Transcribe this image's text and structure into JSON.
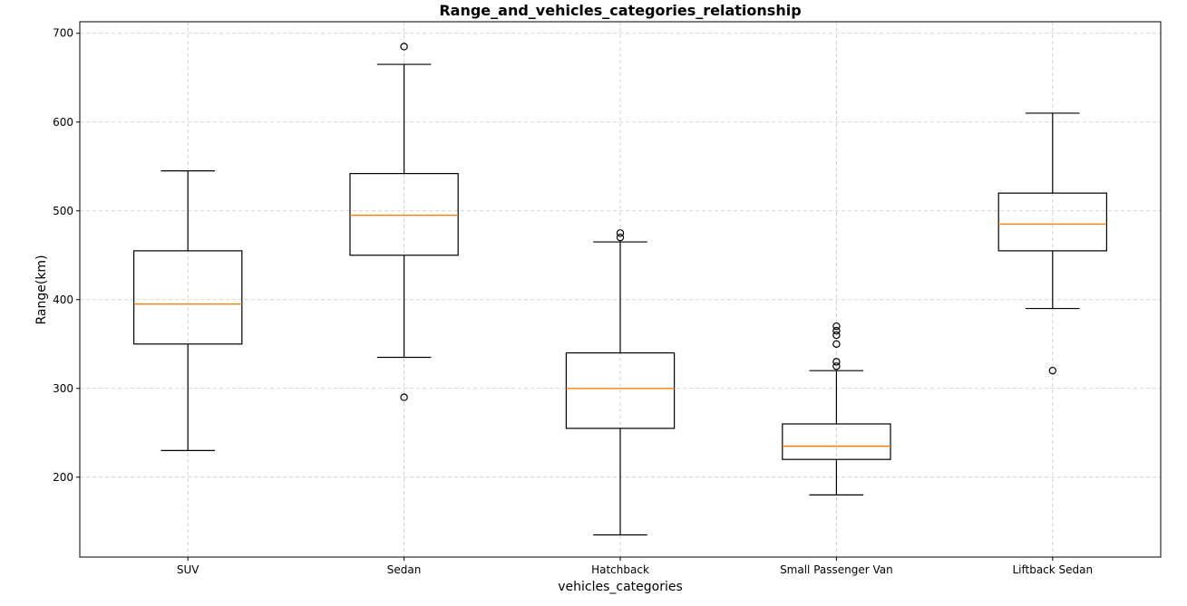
{
  "chart_data": {
    "type": "box",
    "title": "Range_and_vehicles_categories_relationship",
    "xlabel": "vehicles_categories",
    "ylabel": "Range(km)",
    "ylim": [
      110,
      713
    ],
    "yticks": [
      200,
      300,
      400,
      500,
      600,
      700
    ],
    "grid": true,
    "colors": {
      "box": "#000000",
      "median": "#ff7f0e",
      "grid": "#c8c8c8"
    },
    "categories": [
      "SUV",
      "Sedan",
      "Hatchback",
      "Small Passenger Van",
      "Liftback Sedan"
    ],
    "boxes": [
      {
        "category": "SUV",
        "whisker_low": 230,
        "q1": 350,
        "median": 395,
        "q3": 455,
        "whisker_high": 545,
        "outliers": []
      },
      {
        "category": "Sedan",
        "whisker_low": 335,
        "q1": 450,
        "median": 495,
        "q3": 542,
        "whisker_high": 665,
        "outliers": [
          290,
          685
        ]
      },
      {
        "category": "Hatchback",
        "whisker_low": 135,
        "q1": 255,
        "median": 300,
        "q3": 340,
        "whisker_high": 465,
        "outliers": [
          470,
          475
        ]
      },
      {
        "category": "Small Passenger Van",
        "whisker_low": 180,
        "q1": 220,
        "median": 235,
        "q3": 260,
        "whisker_high": 320,
        "outliers": [
          325,
          330,
          350,
          360,
          365,
          370
        ]
      },
      {
        "category": "Liftback Sedan",
        "whisker_low": 390,
        "q1": 455,
        "median": 485,
        "q3": 520,
        "whisker_high": 610,
        "outliers": [
          320
        ]
      }
    ]
  }
}
